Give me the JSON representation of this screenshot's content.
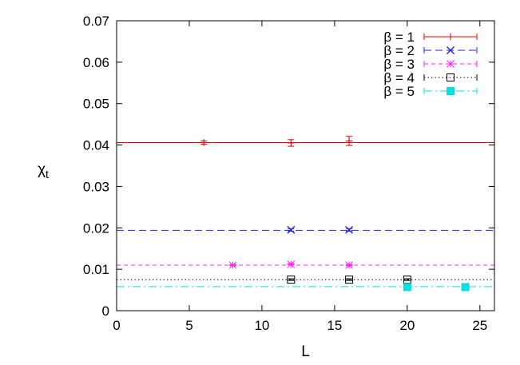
{
  "chart_data": {
    "type": "scatter",
    "xlabel": "L",
    "ylabel": "χ",
    "ylabel_sub": "t",
    "xlim": [
      0,
      26
    ],
    "ylim": [
      0,
      0.07
    ],
    "xticks": [
      "0",
      "5",
      "10",
      "15",
      "20",
      "25"
    ],
    "yticks": [
      "0",
      "0.01",
      "0.02",
      "0.03",
      "0.04",
      "0.05",
      "0.06",
      "0.07"
    ],
    "grid": false,
    "legend_position": "top-right",
    "series": [
      {
        "name": "β = 1",
        "color": "#e8000b",
        "marker": "plus",
        "line_style": "solid",
        "fit_value": 0.0406,
        "points": [
          {
            "x": 6,
            "y": 0.0406,
            "err": 0.0004
          },
          {
            "x": 12,
            "y": 0.0405,
            "err": 0.0008
          },
          {
            "x": 16,
            "y": 0.041,
            "err": 0.0011
          }
        ]
      },
      {
        "name": "β = 2",
        "color": "#2222dd",
        "marker": "cross",
        "line_style": "dashed",
        "fit_value": 0.0194,
        "points": [
          {
            "x": 12,
            "y": 0.0195,
            "err": 0.0003
          },
          {
            "x": 16,
            "y": 0.0195,
            "err": 0.0003
          }
        ]
      },
      {
        "name": "β = 3",
        "color": "#ff22ff",
        "marker": "star",
        "line_style": "dashed-short",
        "fit_value": 0.011,
        "points": [
          {
            "x": 8,
            "y": 0.011,
            "err": 0.0002
          },
          {
            "x": 12,
            "y": 0.0112,
            "err": 0.0002
          },
          {
            "x": 16,
            "y": 0.011,
            "err": 0.0002
          }
        ]
      },
      {
        "name": "β = 4",
        "color": "#000000",
        "marker": "open-square",
        "line_style": "dotted",
        "fit_value": 0.0075,
        "points": [
          {
            "x": 12,
            "y": 0.0075,
            "err": 0.0002
          },
          {
            "x": 16,
            "y": 0.0075,
            "err": 0.0002
          },
          {
            "x": 20,
            "y": 0.0075,
            "err": 0.0002
          }
        ]
      },
      {
        "name": "β = 5",
        "color": "#00e0e0",
        "marker": "filled-square",
        "line_style": "dash-dot",
        "fit_value": 0.0058,
        "points": [
          {
            "x": 20,
            "y": 0.0057,
            "err": 0.0001
          },
          {
            "x": 24,
            "y": 0.0057,
            "err": 0.0001
          }
        ]
      }
    ]
  }
}
